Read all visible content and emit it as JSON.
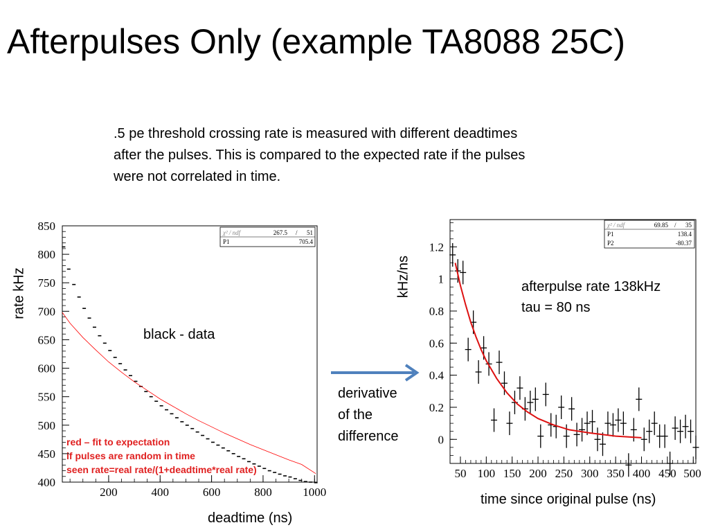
{
  "title": "Afterpulses Only (example TA8088 25C)",
  "description": [
    ".5 pe threshold crossing rate is measured with different deadtimes",
    "after the pulses. This is compared to the expected rate if the pulses",
    "were not correlated in time."
  ],
  "arrow_label": [
    "derivative",
    "of the",
    "difference"
  ],
  "chart_data": [
    {
      "type": "scatter",
      "xlabel": "deadtime (ns)",
      "ylabel": "rate  kHz",
      "xlim": [
        20,
        1010
      ],
      "ylim": [
        400,
        850
      ],
      "x_ticks": [
        "200",
        "400",
        "600",
        "800",
        "1000"
      ],
      "y_ticks": [
        "400",
        "450",
        "500",
        "550",
        "600",
        "650",
        "700",
        "750",
        "800",
        "850"
      ],
      "annotation": "black - data",
      "stats": {
        "chi2_label": "χ² / ndf",
        "chi2": "267.5",
        "sep": "/",
        "ndf": "51",
        "p1_label": "P1",
        "p1": "705.4"
      },
      "note_lines": [
        "red – fit to expectation",
        "if pulses are random in time",
        "seen rate=real rate/(1+deadtime*real rate)"
      ],
      "series": [
        {
          "color": "#000000",
          "x": [
            25,
            45,
            65,
            85,
            105,
            125,
            145,
            165,
            185,
            205,
            225,
            245,
            265,
            285,
            305,
            325,
            345,
            365,
            385,
            405,
            425,
            445,
            465,
            485,
            505,
            525,
            545,
            565,
            585,
            605,
            625,
            645,
            665,
            685,
            705,
            725,
            745,
            765,
            785,
            805,
            825,
            845,
            865,
            885,
            905,
            925,
            945,
            965,
            985,
            1005
          ],
          "y": [
            813,
            774,
            747,
            725,
            705,
            688,
            672,
            657,
            644,
            631,
            619,
            608,
            597,
            587,
            577,
            568,
            559,
            550,
            542,
            534,
            527,
            520,
            513,
            506,
            500,
            494,
            488,
            482,
            476,
            470,
            465,
            460,
            455,
            450,
            445,
            441,
            436,
            432,
            428,
            424,
            420,
            417,
            414,
            411,
            409,
            406,
            403,
            401,
            400,
            399
          ]
        },
        {
          "color": "#ff0000",
          "type": "line",
          "x": [
            20,
            50,
            100,
            150,
            200,
            250,
            300,
            350,
            400,
            450,
            500,
            550,
            600,
            650,
            700,
            750,
            800,
            850,
            900,
            950,
            1005
          ],
          "y": [
            698,
            679,
            654,
            632,
            611,
            593,
            576,
            561,
            546,
            533,
            520,
            508,
            497,
            486,
            476,
            466,
            457,
            448,
            439,
            431,
            415
          ]
        }
      ]
    },
    {
      "type": "scatter",
      "xlabel": "time since original pulse (ns)",
      "ylabel": "kHz/ns",
      "xlim": [
        30,
        505
      ],
      "ylim": [
        -0.15,
        1.37
      ],
      "x_ticks": [
        "50",
        "100",
        "150",
        "200",
        "250",
        "300",
        "350",
        "400",
        "450",
        "500"
      ],
      "y_ticks": [
        "0",
        "0.2",
        "0.4",
        "0.6",
        "0.8",
        "1",
        "1.2"
      ],
      "annotations": [
        "afterpulse rate 138kHz",
        "tau = 80 ns"
      ],
      "stats": {
        "chi2_label": "χ² / ndf",
        "chi2": "69.85",
        "sep": "/",
        "ndf": "35",
        "p1_label": "P1",
        "p1": "138.4",
        "p2_label": "P2",
        "p2": "-80.37"
      },
      "points": {
        "x": [
          35,
          45,
          55,
          65,
          75,
          85,
          95,
          105,
          115,
          125,
          135,
          145,
          155,
          165,
          175,
          185,
          195,
          205,
          215,
          225,
          235,
          245,
          255,
          265,
          275,
          285,
          295,
          305,
          315,
          325,
          335,
          345,
          355,
          365,
          375,
          385,
          395,
          405,
          415,
          425,
          435,
          445,
          455,
          465,
          475,
          485,
          495,
          505
        ],
        "y": [
          1.15,
          1.05,
          1.04,
          0.56,
          0.73,
          0.42,
          0.57,
          0.47,
          0.12,
          0.48,
          0.35,
          0.1,
          0.23,
          0.32,
          0.19,
          0.23,
          0.25,
          0.02,
          0.28,
          0.09,
          0.08,
          0.2,
          0.02,
          0.19,
          0.03,
          0.06,
          0.1,
          0.11,
          0.0,
          -0.03,
          0.1,
          0.09,
          0.12,
          0.1,
          -0.16,
          0.06,
          0.25,
          0.0,
          0.05,
          0.1,
          0.02,
          0.02,
          -0.15,
          0.07,
          0.05,
          0.08,
          0.05,
          -0.05
        ]
      },
      "fit": {
        "color": "#dd1111",
        "x": [
          40,
          50,
          60,
          70,
          80,
          90,
          100,
          120,
          140,
          160,
          180,
          200,
          230,
          260,
          300,
          350,
          400
        ],
        "y": [
          1.1,
          0.96,
          0.84,
          0.73,
          0.64,
          0.56,
          0.49,
          0.38,
          0.29,
          0.22,
          0.17,
          0.13,
          0.09,
          0.06,
          0.04,
          0.02,
          0.01
        ]
      }
    }
  ]
}
